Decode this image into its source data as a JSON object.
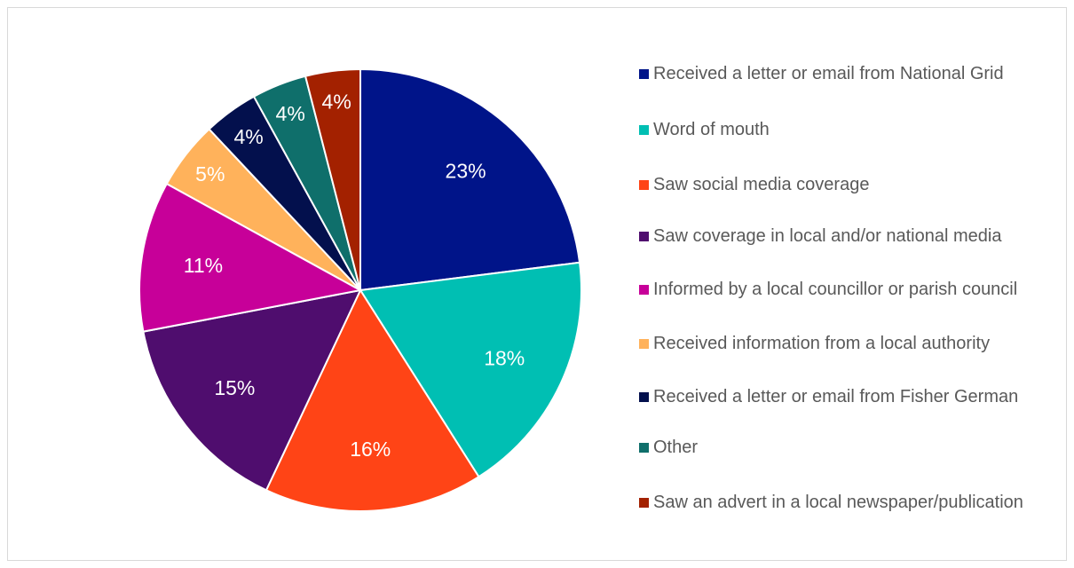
{
  "chart_data": {
    "type": "pie",
    "title": "",
    "legend_position": "right",
    "start_angle_deg": 0,
    "direction": "clockwise",
    "slices": [
      {
        "label": "Received a letter or email from National Grid",
        "value": 23,
        "value_label": "23%",
        "color": "#001489"
      },
      {
        "label": "Word of mouth",
        "value": 18,
        "value_label": "18%",
        "color": "#00BFB3"
      },
      {
        "label": "Saw social media coverage",
        "value": 16,
        "value_label": "16%",
        "color": "#FF4416"
      },
      {
        "label": "Saw coverage in local and/or national media",
        "value": 15,
        "value_label": "15%",
        "color": "#4F0D6E"
      },
      {
        "label": "Informed by a local councillor or parish council",
        "value": 11,
        "value_label": "11%",
        "color": "#C70099"
      },
      {
        "label": "Received information from a local authority",
        "value": 5,
        "value_label": "5%",
        "color": "#FFB25B"
      },
      {
        "label": "Received a letter or email from Fisher German",
        "value": 4,
        "value_label": "4%",
        "color": "#03104D"
      },
      {
        "label": "Other",
        "value": 4,
        "value_label": "4%",
        "color": "#0F6F6B"
      },
      {
        "label": "Saw an advert in a local newspaper/publication",
        "value": 4,
        "value_label": "4%",
        "color": "#A32100"
      }
    ]
  }
}
